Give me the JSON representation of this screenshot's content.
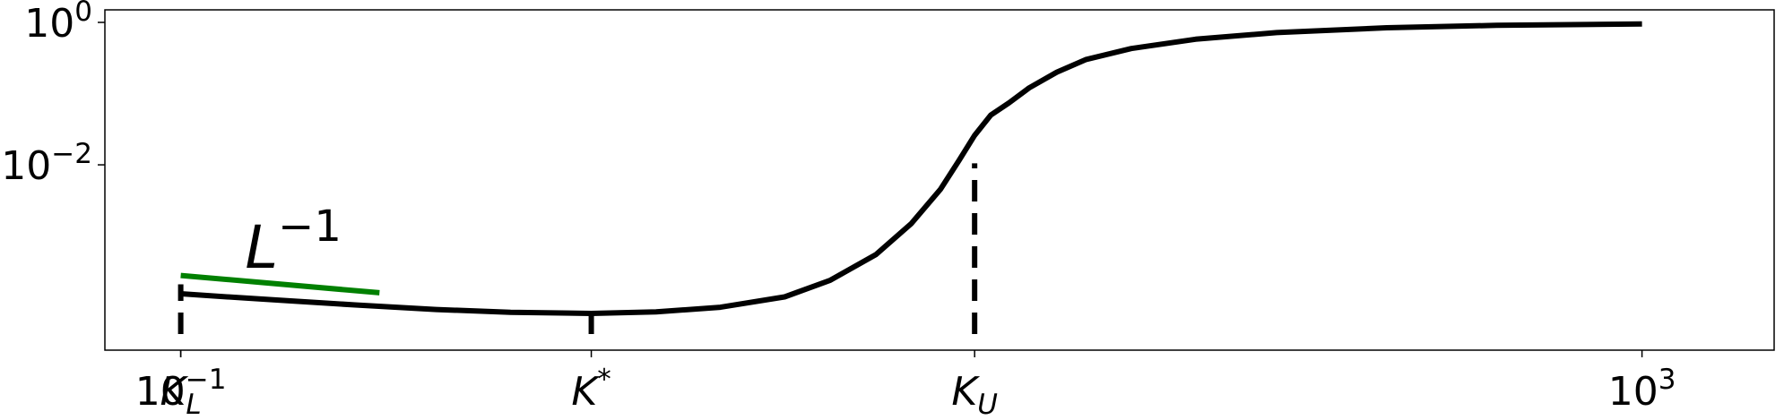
{
  "chart_data": {
    "type": "line",
    "title": "",
    "xlabel": "",
    "ylabel": "",
    "xscale": "log",
    "yscale": "log",
    "xlim": [
      0.062,
      2300
    ],
    "ylim": [
      2.5e-05,
      1.5
    ],
    "grid": false,
    "legend": "none",
    "xticks": [
      {
        "value": 0.1,
        "base": "10",
        "exp": "−1"
      },
      {
        "value": 1000,
        "base": "10",
        "exp": "3"
      }
    ],
    "yticks": [
      {
        "value": 1,
        "base": "10",
        "exp": "0"
      },
      {
        "value": 0.01,
        "base": "10",
        "exp": "−2"
      }
    ],
    "x_markers": [
      {
        "value": 0.1,
        "label": "K",
        "sub": "L",
        "sup": ""
      },
      {
        "value": 1.33,
        "label": "K",
        "sub": "",
        "sup": "*"
      },
      {
        "value": 14.9,
        "label": "K",
        "sub": "U",
        "sup": ""
      }
    ],
    "vlines": [
      {
        "x": 0.1,
        "ymax": 0.00021
      },
      {
        "x": 1.33,
        "ymax": 7.8e-05
      },
      {
        "x": 14.9,
        "ymax": 0.0105
      }
    ],
    "series": [
      {
        "color": "#000000",
        "x": [
          0.1,
          0.15,
          0.2,
          0.3,
          0.5,
          0.8,
          1.33,
          2.0,
          3.0,
          4.5,
          6.0,
          8.0,
          10.0,
          12.0,
          13.5,
          14.9,
          16.5,
          18.5,
          21,
          25,
          30,
          40,
          60,
          100,
          200,
          400,
          1000
        ],
        "y": [
          0.000155,
          0.000135,
          0.000123,
          0.000108,
          9.3e-05,
          8.5e-05,
          8.2e-05,
          8.6e-05,
          0.0001,
          0.00014,
          0.00024,
          0.00055,
          0.0015,
          0.0045,
          0.0115,
          0.026,
          0.05,
          0.074,
          0.12,
          0.2,
          0.3,
          0.43,
          0.58,
          0.72,
          0.84,
          0.91,
          0.95
        ]
      },
      {
        "color": "#008000",
        "x": [
          0.1,
          0.35
        ],
        "y": [
          0.00028,
          0.00016
        ]
      }
    ],
    "annotations": [
      {
        "text": "L",
        "sup": "−1",
        "x": 0.15,
        "y": 0.00036
      }
    ]
  }
}
